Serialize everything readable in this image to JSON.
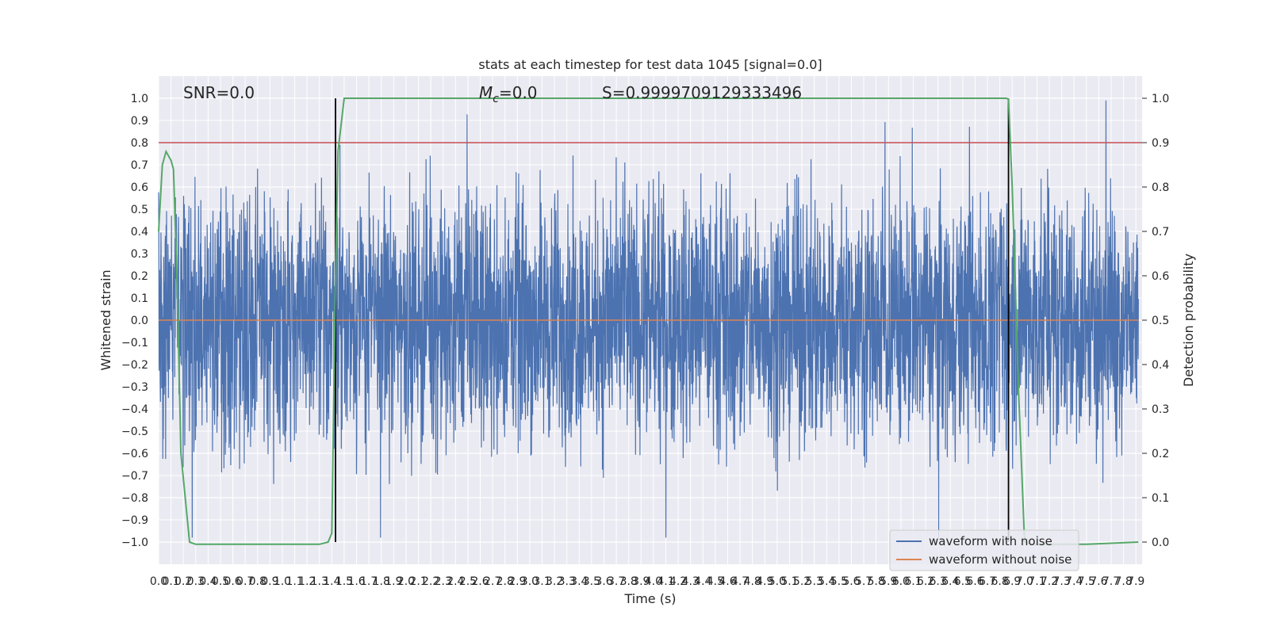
{
  "chart_data": {
    "type": "line",
    "title": "stats at each timestep for test data 1045 [signal=0.0]",
    "xlabel": "Time (s)",
    "ylabel_left": "Whitened strain",
    "ylabel_right": "Detection probability",
    "xlim": [
      0.0,
      7.95
    ],
    "ylim_left": [
      -1.1,
      1.1
    ],
    "ylim_right": [
      -0.05,
      1.05
    ],
    "x_ticks": [
      "0.0",
      "0.1",
      "0.2",
      "0.3",
      "0.4",
      "0.5",
      "0.6",
      "0.7",
      "0.8",
      "0.9",
      "1.0",
      "1.1",
      "1.2",
      "1.3",
      "1.4",
      "1.5",
      "1.6",
      "1.7",
      "1.8",
      "1.9",
      "2.0",
      "2.1",
      "2.2",
      "2.3",
      "2.4",
      "2.5",
      "2.6",
      "2.7",
      "2.8",
      "2.9",
      "3.0",
      "3.1",
      "3.2",
      "3.3",
      "3.4",
      "3.5",
      "3.6",
      "3.7",
      "3.8",
      "3.9",
      "4.0",
      "4.1",
      "4.2",
      "4.3",
      "4.4",
      "4.5",
      "4.6",
      "4.7",
      "4.8",
      "4.9",
      "5.0",
      "5.1",
      "5.2",
      "5.3",
      "5.4",
      "5.5",
      "5.6",
      "5.7",
      "5.8",
      "5.9",
      "6.0",
      "6.1",
      "6.2",
      "6.3",
      "6.4",
      "6.5",
      "6.6",
      "6.7",
      "6.8",
      "6.9",
      "7.0",
      "7.1",
      "7.2",
      "7.3",
      "7.4",
      "7.5",
      "7.6",
      "7.7",
      "7.8",
      "7.9"
    ],
    "y_ticks_left": [
      "-1.0",
      "-0.9",
      "-0.8",
      "-0.7",
      "-0.6",
      "-0.5",
      "-0.4",
      "-0.3",
      "-0.2",
      "-0.1",
      "0.0",
      "0.1",
      "0.2",
      "0.3",
      "0.4",
      "0.5",
      "0.6",
      "0.7",
      "0.8",
      "0.9",
      "1.0"
    ],
    "y_ticks_right": [
      "0.0",
      "0.1",
      "0.2",
      "0.3",
      "0.4",
      "0.5",
      "0.6",
      "0.7",
      "0.8",
      "0.9",
      "1.0"
    ],
    "annotations": {
      "snr": "SNR=0.0",
      "mc_symbol": "M",
      "mc_subscript": "c",
      "mc_value": "=0.0",
      "s": "S=0.9999709129333496"
    },
    "threshold": {
      "value": 0.9,
      "axis": "right",
      "color": "#c44e52"
    },
    "vertical_markers": [
      1.43,
      6.87
    ],
    "series": [
      {
        "name": "waveform with noise",
        "axis": "left",
        "color": "#4c72b0",
        "description_stats": {
          "typical_amplitude": 0.5,
          "max": 0.99,
          "min": -0.98
        }
      },
      {
        "name": "waveform without noise",
        "axis": "left",
        "color": "#dd8452",
        "values_constant": 0.0
      },
      {
        "name": "",
        "axis": "right",
        "color": "#55a868",
        "x": [
          0.0,
          0.03,
          0.06,
          0.1,
          0.12,
          0.15,
          0.18,
          0.25,
          0.3,
          0.5,
          0.8,
          1.0,
          1.2,
          1.3,
          1.37,
          1.4,
          1.43,
          1.45,
          1.5,
          1.6,
          2.0,
          3.0,
          4.0,
          5.0,
          6.0,
          6.7,
          6.8,
          6.85,
          6.87,
          6.9,
          6.95,
          7.0,
          7.05,
          7.2,
          7.5,
          7.92
        ],
        "y": [
          0.7,
          0.85,
          0.88,
          0.86,
          0.84,
          0.58,
          0.2,
          0.0,
          -0.005,
          -0.005,
          -0.005,
          -0.005,
          -0.005,
          -0.005,
          0.0,
          0.02,
          0.6,
          0.88,
          1.0,
          1.0,
          1.0,
          1.0,
          1.0,
          1.0,
          1.0,
          1.0,
          1.0,
          1.0,
          0.998,
          0.8,
          0.35,
          0.0,
          -0.005,
          -0.005,
          -0.005,
          0.0
        ]
      }
    ],
    "legend": {
      "position": "lower-right",
      "entries": [
        "waveform with noise",
        "waveform without noise"
      ]
    },
    "grid": true,
    "colors": {
      "plot_bg": "#eaeaf2",
      "grid": "#ffffff",
      "marker": "#000000"
    }
  }
}
